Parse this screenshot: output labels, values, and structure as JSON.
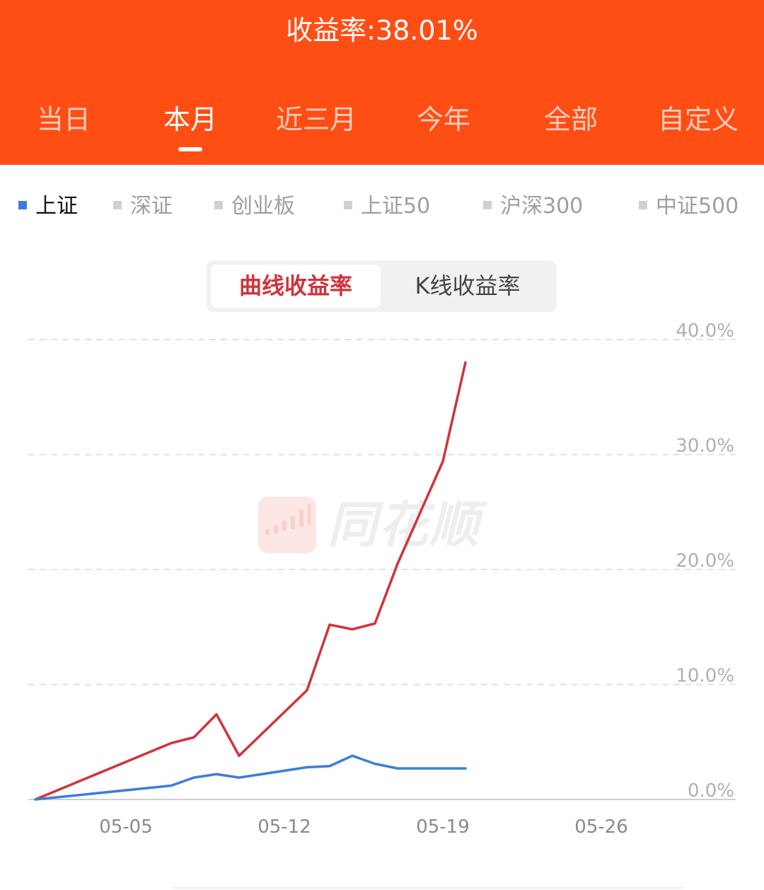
{
  "header": {
    "return_rate_text": "收益率:38.01%",
    "tabs": [
      {
        "label": "当日"
      },
      {
        "label": "本月"
      },
      {
        "label": "近三月"
      },
      {
        "label": "今年"
      },
      {
        "label": "全部"
      },
      {
        "label": "自定义"
      }
    ],
    "active_tab": "本月"
  },
  "indices": {
    "items": [
      {
        "label": "上证"
      },
      {
        "label": "深证"
      },
      {
        "label": "创业板"
      },
      {
        "label": "上证50"
      },
      {
        "label": "沪深300"
      },
      {
        "label": "中证500"
      }
    ],
    "active": "上证"
  },
  "mode_toggle": {
    "curve_label": "曲线收益率",
    "kline_label": "K线收益率",
    "active": "曲线收益率"
  },
  "watermark": {
    "text": "同花顺"
  },
  "colors": {
    "header_bg": "#fe4e14",
    "portfolio_line": "#d0343c",
    "index_line": "#3c7ddb",
    "axis_label": "#b0b0b0",
    "grid": "#e2e2e2"
  },
  "chart_data": {
    "type": "line",
    "x_min": "05-01",
    "x_max": "05-31",
    "x_ticks": [
      "05-05",
      "05-12",
      "05-19",
      "05-26"
    ],
    "y_ticks": [
      "40.0%",
      "30.0%",
      "20.0%",
      "10.0%",
      "0.0%"
    ],
    "ylim": [
      0,
      40
    ],
    "grid": true,
    "series": [
      {
        "color": "#d0343c",
        "points": [
          {
            "x": "05-01",
            "y": 0.0
          },
          {
            "x": "05-07",
            "y": 4.9
          },
          {
            "x": "05-08",
            "y": 5.4
          },
          {
            "x": "05-09",
            "y": 7.4
          },
          {
            "x": "05-10",
            "y": 3.8
          },
          {
            "x": "05-13",
            "y": 9.5
          },
          {
            "x": "05-14",
            "y": 15.2
          },
          {
            "x": "05-15",
            "y": 14.8
          },
          {
            "x": "05-16",
            "y": 15.3
          },
          {
            "x": "05-17",
            "y": 20.5
          },
          {
            "x": "05-19",
            "y": 29.4
          },
          {
            "x": "05-20",
            "y": 38.01
          }
        ]
      },
      {
        "color": "#3c7ddb",
        "points": [
          {
            "x": "05-01",
            "y": 0.0
          },
          {
            "x": "05-07",
            "y": 1.2
          },
          {
            "x": "05-08",
            "y": 1.9
          },
          {
            "x": "05-09",
            "y": 2.2
          },
          {
            "x": "05-10",
            "y": 1.9
          },
          {
            "x": "05-13",
            "y": 2.8
          },
          {
            "x": "05-14",
            "y": 2.9
          },
          {
            "x": "05-15",
            "y": 3.8
          },
          {
            "x": "05-16",
            "y": 3.1
          },
          {
            "x": "05-17",
            "y": 2.7
          },
          {
            "x": "05-20",
            "y": 2.7
          }
        ]
      }
    ]
  }
}
